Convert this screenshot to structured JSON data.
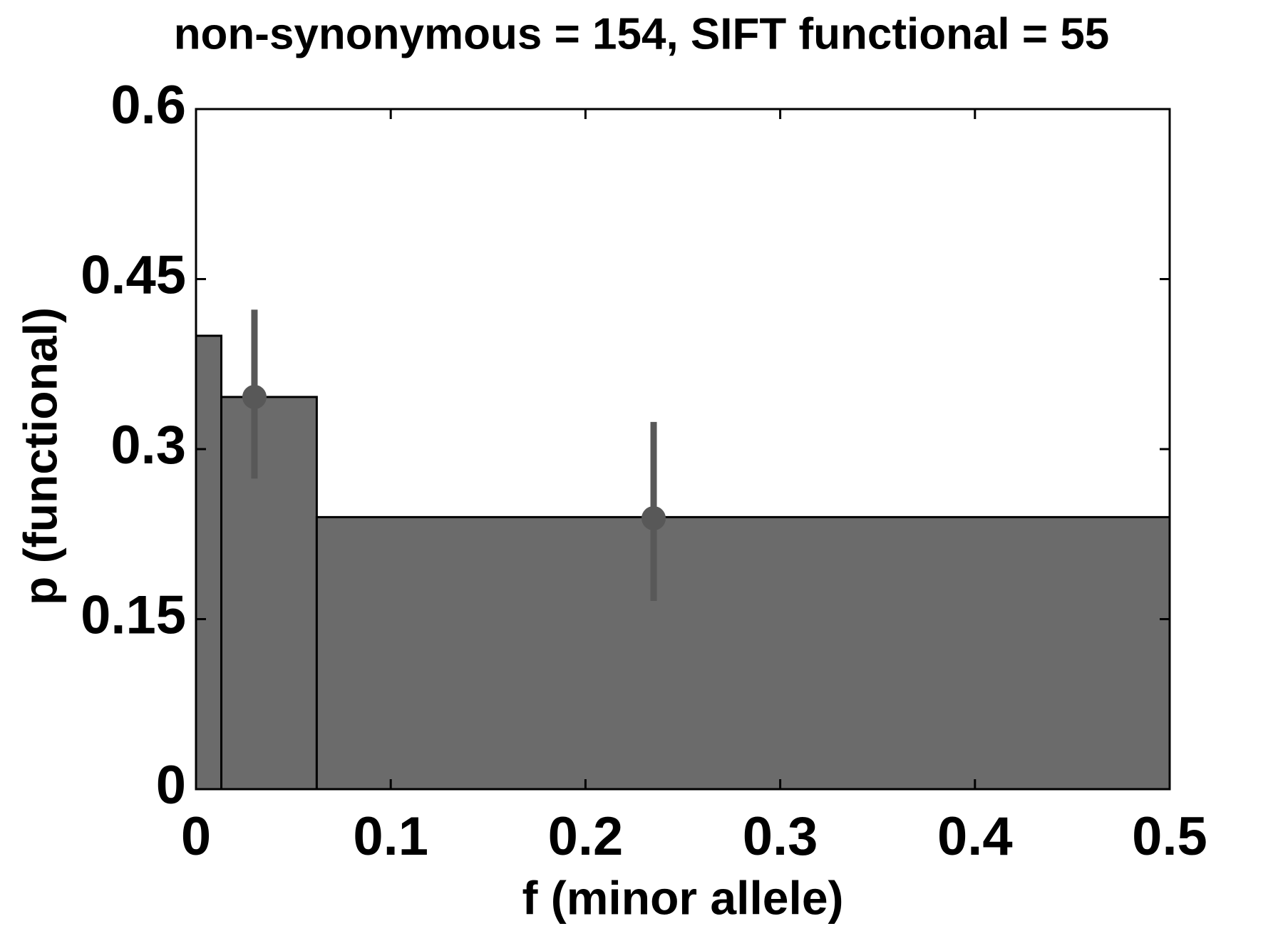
{
  "chart_data": {
    "type": "histogram",
    "title": "non-synonymous = 154, SIFT functional = 55",
    "xlabel": "f (minor allele)",
    "ylabel": "p (functional)",
    "bins": [
      0,
      0.013,
      0.062,
      0.5
    ],
    "values": [
      0.4,
      0.346,
      0.24
    ],
    "color": "#6b6b6b",
    "points": {
      "x": [
        0.03,
        0.235
      ],
      "values": [
        0.346,
        0.239
      ],
      "lower": [
        0.274,
        0.166
      ],
      "upper": [
        0.423,
        0.324
      ],
      "color": "#585858"
    },
    "xlim": [
      0,
      0.5
    ],
    "xticks": [
      0,
      0.1,
      0.2,
      0.3,
      0.4,
      0.5
    ],
    "ylim": [
      0,
      0.6
    ],
    "yticks": [
      0,
      0.15,
      0.3,
      0.45,
      0.6
    ]
  }
}
